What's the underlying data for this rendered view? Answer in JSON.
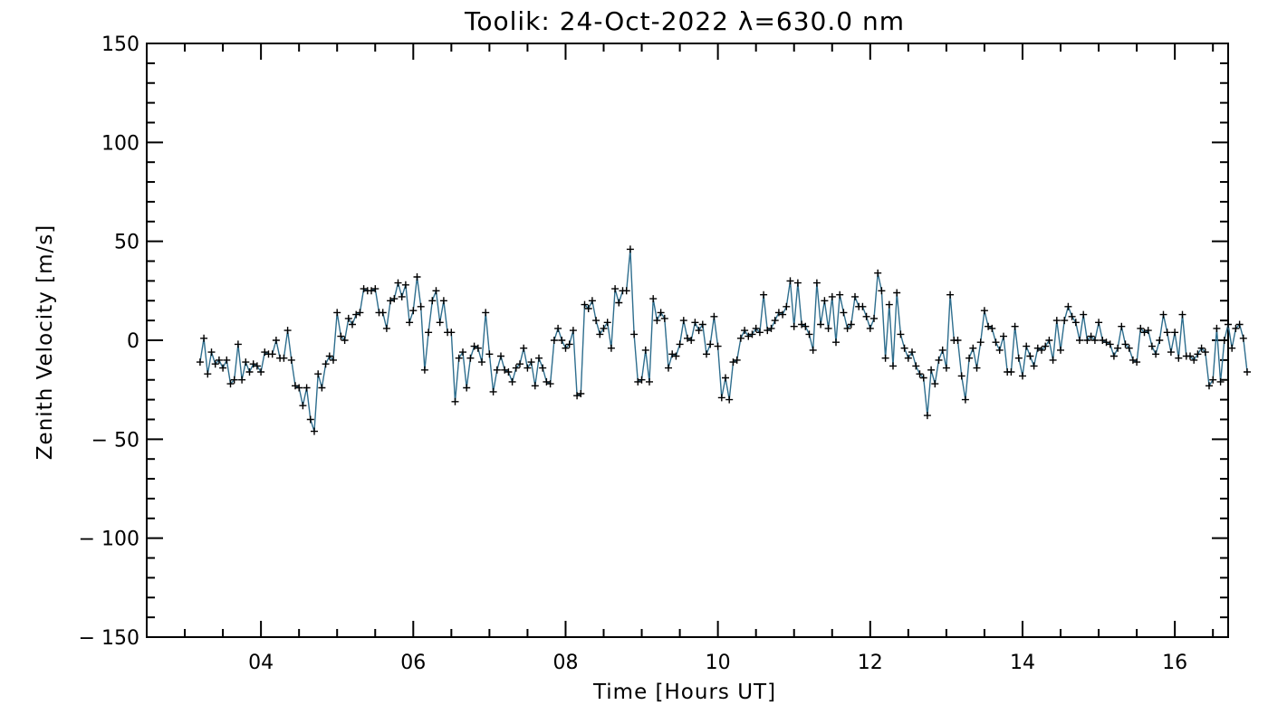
{
  "chart_data": {
    "type": "line",
    "title": "Toolik: 24-Oct-2022 λ=630.0 nm",
    "xlabel": "Time [Hours UT]",
    "ylabel": "Zenith Velocity [m/s]",
    "xlim": [
      2.5,
      16.7
    ],
    "ylim": [
      -150,
      150
    ],
    "x_ticks": [
      4,
      6,
      8,
      10,
      12,
      14,
      16
    ],
    "x_tick_labels": [
      "04",
      "06",
      "08",
      "10",
      "12",
      "14",
      "16"
    ],
    "y_ticks": [
      150,
      100,
      50,
      0,
      -50,
      -100,
      -150
    ],
    "y_tick_labels": [
      "150",
      "100",
      "50",
      "0",
      "− 50",
      "− 100",
      "− 150"
    ],
    "grid": false,
    "line_color": "#2e6e8e",
    "marker": "plus",
    "marker_color": "#000000",
    "series": [
      {
        "values": [
          -11,
          1,
          -17,
          -6,
          -12,
          -10,
          -14,
          -10,
          -22,
          -20,
          -2,
          -20,
          -11,
          -16,
          -12,
          -13,
          -16,
          -6,
          -7,
          -7,
          0,
          -9,
          -9,
          5,
          -10,
          -23,
          -24,
          -33,
          -24,
          -40,
          -46,
          -17,
          -24,
          -12,
          -8,
          -10,
          14,
          2,
          0,
          11,
          8,
          13,
          14,
          26,
          25,
          25,
          26,
          14,
          14,
          6,
          20,
          21,
          29,
          22,
          28,
          9,
          15,
          32,
          17,
          -15,
          4,
          20,
          25,
          9,
          20,
          4,
          4,
          -31,
          -9,
          -6,
          -24,
          -9,
          -3,
          -4,
          -11,
          14,
          -7,
          -26,
          -15,
          -8,
          -15,
          -16,
          -21,
          -14,
          -12,
          -4,
          -14,
          -11,
          -23,
          -9,
          -14,
          -21,
          -22,
          0,
          6,
          0,
          -4,
          -2,
          5,
          -28,
          -27,
          18,
          16,
          20,
          10,
          3,
          6,
          9,
          -4,
          26,
          19,
          25,
          25,
          46,
          3,
          -21,
          -20,
          -5,
          -21,
          21,
          10,
          14,
          11,
          -14,
          -7,
          -8,
          -2,
          10,
          1,
          0,
          9,
          5,
          8,
          -7,
          -2,
          12,
          -3,
          -29,
          -19,
          -30,
          -11,
          -10,
          1,
          5,
          2,
          3,
          6,
          4,
          23,
          5,
          6,
          10,
          14,
          13,
          17,
          30,
          7,
          29,
          8,
          7,
          3,
          -5,
          29,
          8,
          20,
          6,
          22,
          -1,
          23,
          14,
          6,
          8,
          22,
          17,
          17,
          12,
          6,
          11,
          34,
          25,
          -9,
          18,
          -13,
          24,
          3,
          -4,
          -9,
          -6,
          -13,
          -17,
          -19,
          -38,
          -15,
          -22,
          -10,
          -5,
          -14,
          23,
          0,
          0,
          -18,
          -30,
          -9,
          -4,
          -14,
          -1,
          15,
          7,
          6,
          -1,
          -5,
          2,
          -16,
          -16,
          7,
          -9,
          -18,
          -3,
          -8,
          -13,
          -4,
          -5,
          -3,
          0,
          -10,
          10,
          -5,
          10,
          17,
          12,
          9,
          0,
          13,
          0,
          2,
          0,
          9,
          0,
          -1,
          -2,
          -8,
          -4,
          7,
          -2,
          -4,
          -10,
          -11,
          6,
          4,
          5,
          -3,
          -7,
          0,
          13,
          4,
          -6,
          4,
          -9,
          13,
          -8,
          -8,
          -10,
          -7,
          -4,
          -6,
          -23,
          -20,
          6,
          -21,
          0,
          8,
          -4,
          6,
          8,
          1,
          -16
        ]
      }
    ],
    "x_start": 3.2,
    "x_step": 0.05
  }
}
